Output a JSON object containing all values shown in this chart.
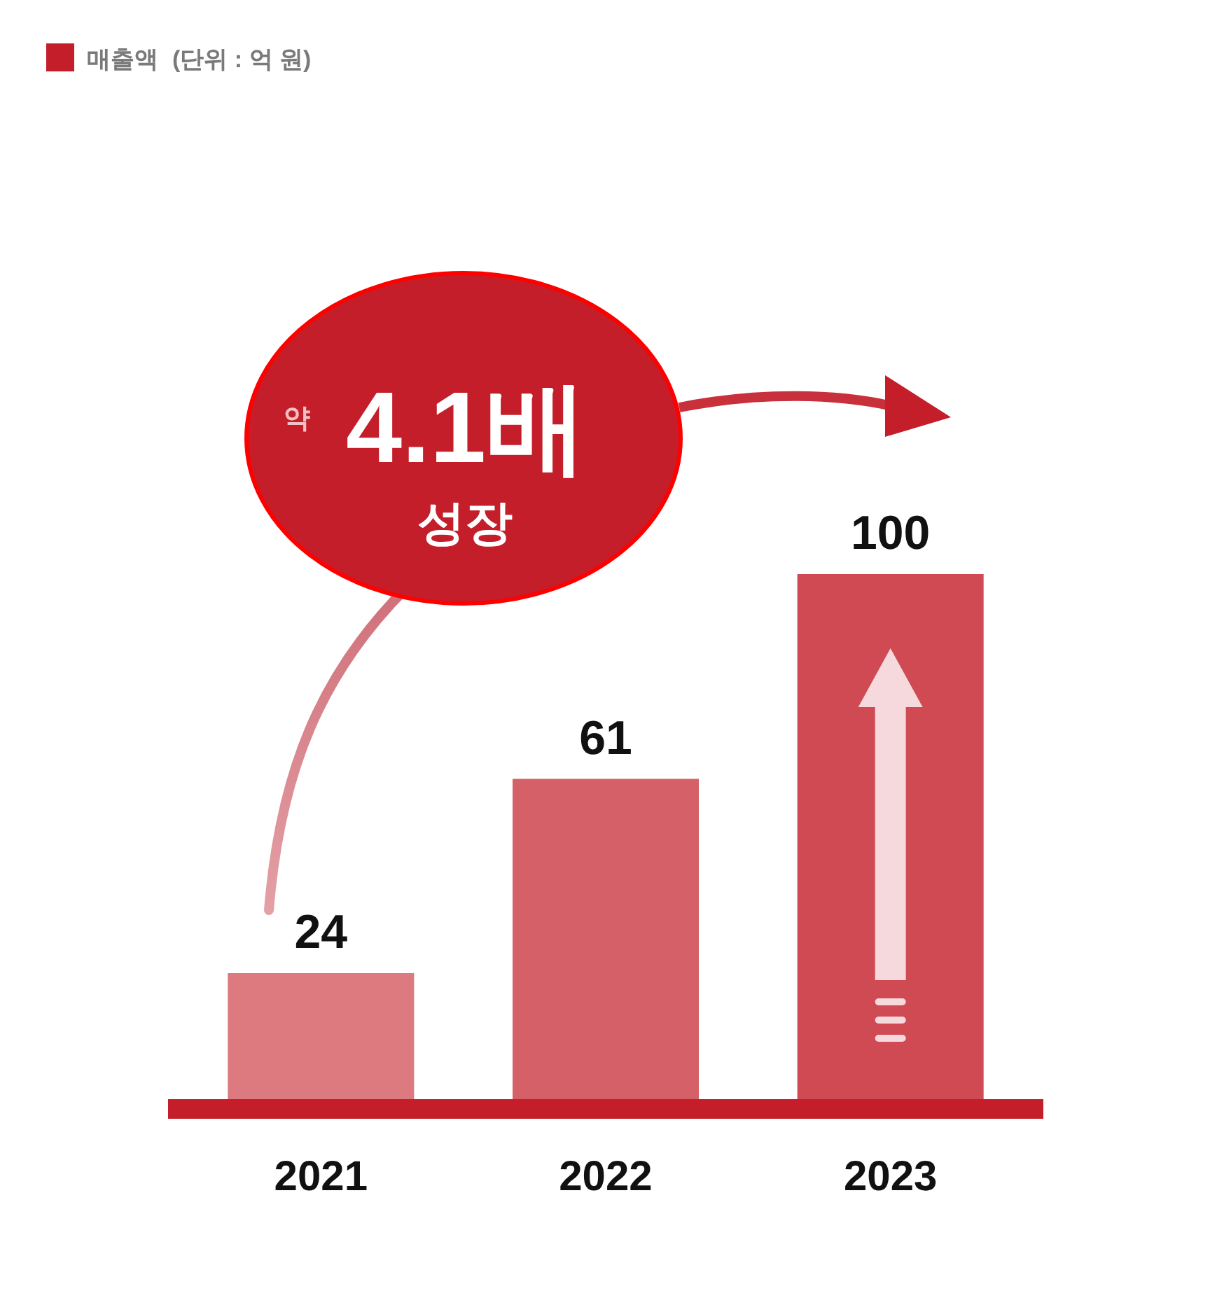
{
  "chart_data": {
    "type": "bar",
    "categories": [
      "2021",
      "2022",
      "2023"
    ],
    "series": [
      {
        "name": "매출액",
        "color": "#c41e2a",
        "colors": [
          "#dc7a80",
          "#d66068",
          "#cf4a52"
        ],
        "values": [
          24,
          61,
          100
        ]
      }
    ],
    "data_labels": true,
    "legend": "top left",
    "annotations": [
      "(단위 : 억 원)",
      "약",
      "4.1배",
      "성장"
    ]
  }
}
